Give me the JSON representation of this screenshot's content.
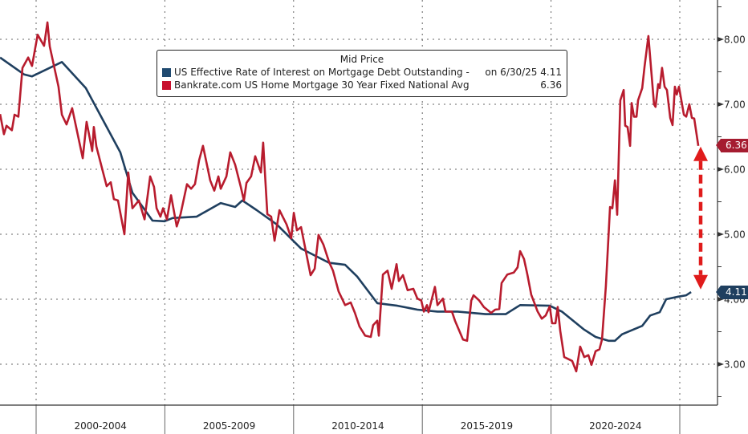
{
  "chart_data": {
    "type": "line",
    "title": "",
    "legend_title": "Mid Price",
    "legend_placement": "top-center",
    "grid": true,
    "xlabel": "",
    "ylabel": "",
    "x_tick_labels": [
      "2000-2004",
      "2005-2009",
      "2010-2014",
      "2015-2019",
      "2020-2024"
    ],
    "x_period_boundaries": [
      2000,
      2005,
      2010,
      2015,
      2020,
      2025
    ],
    "xlim": [
      1998.6,
      2026.5
    ],
    "y_ticks": [
      3,
      4,
      5,
      6,
      7,
      8
    ],
    "y_tick_labels": [
      "3.00",
      "4.00",
      "5.00",
      "6.00",
      "7.00",
      "8.00"
    ],
    "ylim": [
      2.37,
      8.6
    ],
    "y_axis_side": "right",
    "series": [
      {
        "name": "US Effective Rate of Interest on Mortgage Debt Outstanding -",
        "legend_note": "on 6/30/25",
        "last_value": "4.11",
        "color": "#1f3f5f",
        "points": [
          [
            1998.6,
            7.72
          ],
          [
            1999.53,
            7.46
          ],
          [
            1999.84,
            7.43
          ],
          [
            2001.0,
            7.65
          ],
          [
            2001.93,
            7.25
          ],
          [
            2003.27,
            6.26
          ],
          [
            2003.74,
            5.64
          ],
          [
            2004.52,
            5.21
          ],
          [
            2004.99,
            5.2
          ],
          [
            2005.3,
            5.25
          ],
          [
            2006.23,
            5.27
          ],
          [
            2007.17,
            5.48
          ],
          [
            2007.73,
            5.42
          ],
          [
            2008.01,
            5.52
          ],
          [
            2008.57,
            5.37
          ],
          [
            2009.35,
            5.15
          ],
          [
            2010.29,
            4.78
          ],
          [
            2011.38,
            4.56
          ],
          [
            2012.0,
            4.53
          ],
          [
            2012.47,
            4.35
          ],
          [
            2013.25,
            3.94
          ],
          [
            2014.03,
            3.9
          ],
          [
            2014.81,
            3.84
          ],
          [
            2015.59,
            3.81
          ],
          [
            2016.37,
            3.81
          ],
          [
            2017.46,
            3.77
          ],
          [
            2018.24,
            3.77
          ],
          [
            2018.8,
            3.91
          ],
          [
            2019.95,
            3.9
          ],
          [
            2020.42,
            3.81
          ],
          [
            2021.26,
            3.54
          ],
          [
            2021.73,
            3.42
          ],
          [
            2022.23,
            3.36
          ],
          [
            2022.48,
            3.36
          ],
          [
            2022.76,
            3.46
          ],
          [
            2023.54,
            3.59
          ],
          [
            2023.85,
            3.75
          ],
          [
            2024.22,
            3.8
          ],
          [
            2024.47,
            4.0
          ],
          [
            2024.94,
            4.04
          ],
          [
            2025.25,
            4.06
          ],
          [
            2025.44,
            4.11
          ]
        ]
      },
      {
        "name": "Bankrate.com US Home Mortgage 30 Year Fixed National Avg",
        "legend_note": "",
        "last_value": "6.36",
        "color": "#b81c2e",
        "points": [
          [
            1998.6,
            6.85
          ],
          [
            1998.75,
            6.54
          ],
          [
            1998.85,
            6.67
          ],
          [
            1999.06,
            6.6
          ],
          [
            1999.16,
            6.84
          ],
          [
            1999.31,
            6.81
          ],
          [
            1999.47,
            7.56
          ],
          [
            1999.69,
            7.72
          ],
          [
            1999.84,
            7.59
          ],
          [
            2000.06,
            8.07
          ],
          [
            2000.31,
            7.9
          ],
          [
            2000.44,
            8.26
          ],
          [
            2000.53,
            7.89
          ],
          [
            2000.87,
            7.27
          ],
          [
            2001.0,
            6.84
          ],
          [
            2001.18,
            6.69
          ],
          [
            2001.4,
            6.94
          ],
          [
            2001.81,
            6.17
          ],
          [
            2001.96,
            6.73
          ],
          [
            2002.18,
            6.28
          ],
          [
            2002.24,
            6.65
          ],
          [
            2002.34,
            6.35
          ],
          [
            2002.74,
            5.74
          ],
          [
            2002.9,
            5.8
          ],
          [
            2003.02,
            5.54
          ],
          [
            2003.18,
            5.52
          ],
          [
            2003.43,
            5.0
          ],
          [
            2003.58,
            5.95
          ],
          [
            2003.74,
            5.4
          ],
          [
            2003.99,
            5.52
          ],
          [
            2004.21,
            5.23
          ],
          [
            2004.43,
            5.89
          ],
          [
            2004.58,
            5.73
          ],
          [
            2004.68,
            5.4
          ],
          [
            2004.83,
            5.27
          ],
          [
            2004.93,
            5.4
          ],
          [
            2005.08,
            5.23
          ],
          [
            2005.24,
            5.6
          ],
          [
            2005.46,
            5.12
          ],
          [
            2005.61,
            5.31
          ],
          [
            2005.86,
            5.77
          ],
          [
            2006.02,
            5.7
          ],
          [
            2006.17,
            5.77
          ],
          [
            2006.33,
            6.14
          ],
          [
            2006.48,
            6.36
          ],
          [
            2006.76,
            5.83
          ],
          [
            2006.92,
            5.67
          ],
          [
            2007.08,
            5.89
          ],
          [
            2007.17,
            5.7
          ],
          [
            2007.39,
            5.89
          ],
          [
            2007.54,
            6.26
          ],
          [
            2007.73,
            6.07
          ],
          [
            2007.95,
            5.73
          ],
          [
            2008.07,
            5.52
          ],
          [
            2008.17,
            5.79
          ],
          [
            2008.35,
            5.89
          ],
          [
            2008.51,
            6.2
          ],
          [
            2008.73,
            5.95
          ],
          [
            2008.82,
            6.41
          ],
          [
            2008.98,
            5.31
          ],
          [
            2009.13,
            5.27
          ],
          [
            2009.26,
            4.9
          ],
          [
            2009.45,
            5.37
          ],
          [
            2009.73,
            5.15
          ],
          [
            2009.91,
            4.94
          ],
          [
            2010.01,
            5.33
          ],
          [
            2010.13,
            5.06
          ],
          [
            2010.29,
            5.11
          ],
          [
            2010.66,
            4.37
          ],
          [
            2010.82,
            4.47
          ],
          [
            2010.97,
            4.99
          ],
          [
            2011.16,
            4.84
          ],
          [
            2011.38,
            4.57
          ],
          [
            2011.53,
            4.44
          ],
          [
            2011.75,
            4.12
          ],
          [
            2012.0,
            3.91
          ],
          [
            2012.22,
            3.95
          ],
          [
            2012.38,
            3.79
          ],
          [
            2012.56,
            3.58
          ],
          [
            2012.78,
            3.44
          ],
          [
            2013.0,
            3.42
          ],
          [
            2013.09,
            3.6
          ],
          [
            2013.25,
            3.67
          ],
          [
            2013.31,
            3.44
          ],
          [
            2013.47,
            4.38
          ],
          [
            2013.65,
            4.44
          ],
          [
            2013.81,
            4.16
          ],
          [
            2014.0,
            4.54
          ],
          [
            2014.09,
            4.28
          ],
          [
            2014.25,
            4.37
          ],
          [
            2014.43,
            4.14
          ],
          [
            2014.65,
            4.16
          ],
          [
            2014.81,
            4.01
          ],
          [
            2014.96,
            3.98
          ],
          [
            2015.06,
            3.81
          ],
          [
            2015.18,
            3.91
          ],
          [
            2015.24,
            3.8
          ],
          [
            2015.49,
            4.19
          ],
          [
            2015.59,
            3.91
          ],
          [
            2015.8,
            4.01
          ],
          [
            2015.9,
            3.81
          ],
          [
            2016.15,
            3.81
          ],
          [
            2016.27,
            3.67
          ],
          [
            2016.58,
            3.38
          ],
          [
            2016.74,
            3.36
          ],
          [
            2016.9,
            3.98
          ],
          [
            2016.99,
            4.06
          ],
          [
            2017.21,
            3.98
          ],
          [
            2017.39,
            3.88
          ],
          [
            2017.67,
            3.79
          ],
          [
            2017.83,
            3.84
          ],
          [
            2017.99,
            3.85
          ],
          [
            2018.08,
            4.25
          ],
          [
            2018.3,
            4.38
          ],
          [
            2018.55,
            4.41
          ],
          [
            2018.7,
            4.49
          ],
          [
            2018.8,
            4.74
          ],
          [
            2018.95,
            4.62
          ],
          [
            2019.08,
            4.38
          ],
          [
            2019.23,
            4.07
          ],
          [
            2019.48,
            3.81
          ],
          [
            2019.64,
            3.7
          ],
          [
            2019.79,
            3.75
          ],
          [
            2019.95,
            3.89
          ],
          [
            2020.04,
            3.63
          ],
          [
            2020.17,
            3.63
          ],
          [
            2020.26,
            3.88
          ],
          [
            2020.36,
            3.51
          ],
          [
            2020.51,
            3.11
          ],
          [
            2020.82,
            3.05
          ],
          [
            2020.98,
            2.89
          ],
          [
            2021.13,
            3.27
          ],
          [
            2021.29,
            3.11
          ],
          [
            2021.45,
            3.14
          ],
          [
            2021.57,
            2.99
          ],
          [
            2021.73,
            3.2
          ],
          [
            2021.88,
            3.23
          ],
          [
            2021.98,
            3.38
          ],
          [
            2022.13,
            4.2
          ],
          [
            2022.29,
            5.42
          ],
          [
            2022.38,
            5.4
          ],
          [
            2022.48,
            5.83
          ],
          [
            2022.57,
            5.3
          ],
          [
            2022.69,
            7.06
          ],
          [
            2022.82,
            7.22
          ],
          [
            2022.88,
            6.67
          ],
          [
            2022.97,
            6.65
          ],
          [
            2023.07,
            6.36
          ],
          [
            2023.13,
            7.02
          ],
          [
            2023.22,
            6.81
          ],
          [
            2023.32,
            6.81
          ],
          [
            2023.38,
            7.06
          ],
          [
            2023.54,
            7.25
          ],
          [
            2023.63,
            7.58
          ],
          [
            2023.78,
            8.05
          ],
          [
            2024.0,
            7.0
          ],
          [
            2024.06,
            6.96
          ],
          [
            2024.16,
            7.31
          ],
          [
            2024.22,
            7.25
          ],
          [
            2024.31,
            7.56
          ],
          [
            2024.41,
            7.27
          ],
          [
            2024.5,
            7.22
          ],
          [
            2024.63,
            6.79
          ],
          [
            2024.72,
            6.68
          ],
          [
            2024.81,
            7.27
          ],
          [
            2024.88,
            7.15
          ],
          [
            2024.97,
            7.27
          ],
          [
            2025.16,
            6.84
          ],
          [
            2025.25,
            6.81
          ],
          [
            2025.37,
            7.0
          ],
          [
            2025.47,
            6.79
          ],
          [
            2025.56,
            6.78
          ],
          [
            2025.72,
            6.36
          ]
        ]
      }
    ],
    "annotations": [
      {
        "type": "double-arrow",
        "style": "dashed",
        "color": "#e01b1b",
        "from_value": 6.3,
        "to_value": 4.2
      }
    ]
  }
}
